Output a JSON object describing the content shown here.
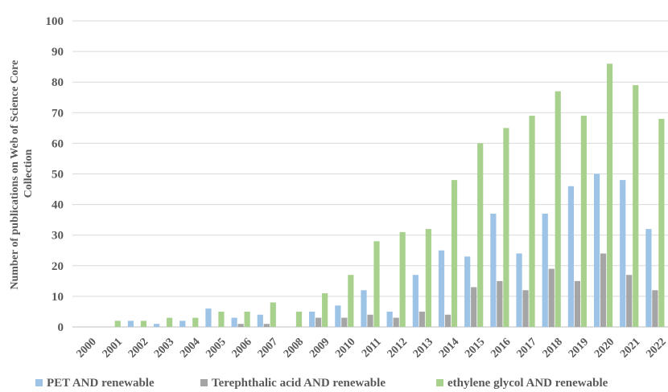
{
  "chart_data": {
    "type": "bar",
    "title": "",
    "xlabel": "",
    "ylabel_lines": [
      "Number of publications on Web of Science Core",
      "Collection"
    ],
    "ylim": [
      0,
      100
    ],
    "yticks": [
      0,
      10,
      20,
      30,
      40,
      50,
      60,
      70,
      80,
      90,
      100
    ],
    "grid": true,
    "legend_position": "bottom",
    "categories": [
      "2000",
      "2001",
      "2002",
      "2003",
      "2004",
      "2005",
      "2006",
      "2007",
      "2008",
      "2009",
      "2010",
      "2011",
      "2012",
      "2013",
      "2014",
      "2015",
      "2016",
      "2017",
      "2018",
      "2019",
      "2020",
      "2021",
      "2022"
    ],
    "series": [
      {
        "name": "PET AND renewable",
        "color": "#9dc3e6",
        "values": [
          0,
          0,
          2,
          1,
          2,
          6,
          3,
          4,
          0,
          5,
          7,
          12,
          5,
          17,
          25,
          23,
          37,
          24,
          37,
          46,
          50,
          48,
          32
        ]
      },
      {
        "name": "Terephthalic acid AND renewable",
        "color": "#a5a5a5",
        "values": [
          0,
          0,
          0,
          0,
          0,
          0,
          1,
          1,
          0,
          3,
          3,
          4,
          3,
          5,
          4,
          13,
          15,
          12,
          19,
          15,
          24,
          17,
          12
        ]
      },
      {
        "name": "ethylene glycol AND renewable",
        "color": "#a9d18e",
        "values": [
          0,
          2,
          2,
          3,
          3,
          5,
          5,
          8,
          5,
          11,
          17,
          28,
          31,
          32,
          48,
          60,
          65,
          69,
          77,
          69,
          86,
          79,
          68
        ]
      }
    ]
  }
}
